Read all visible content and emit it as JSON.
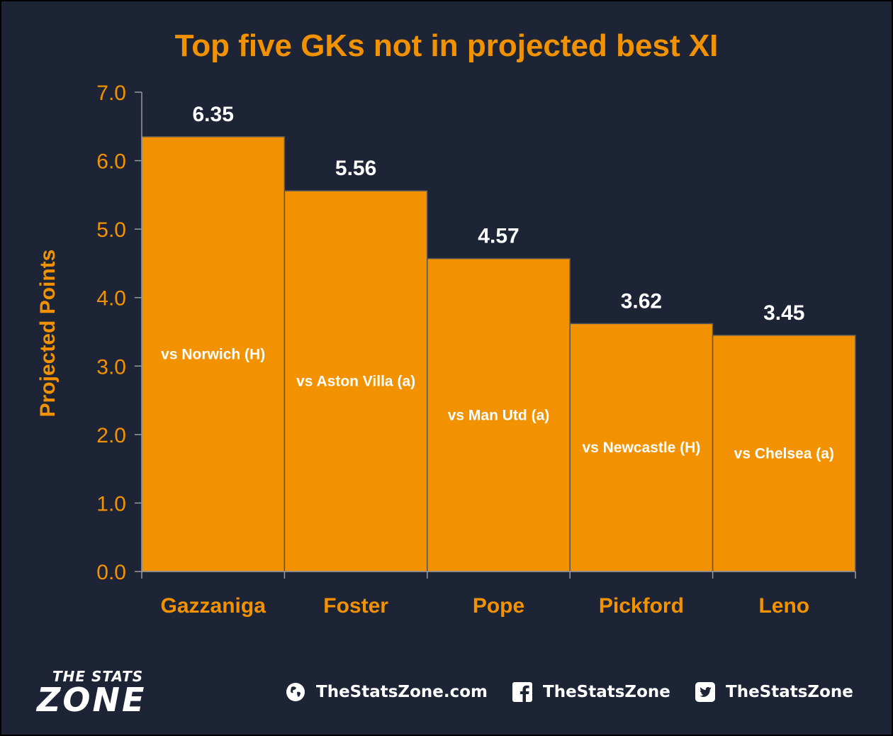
{
  "chart_data": {
    "type": "bar",
    "title": "Top five GKs not in projected best XI",
    "ylabel": "Projected Points",
    "xlabel": "",
    "ylim": [
      0,
      7
    ],
    "yticks": [
      "0.0",
      "1.0",
      "2.0",
      "3.0",
      "4.0",
      "5.0",
      "6.0",
      "7.0"
    ],
    "categories": [
      "Gazzaniga",
      "Foster",
      "Pope",
      "Pickford",
      "Leno"
    ],
    "values": [
      6.35,
      5.56,
      4.57,
      3.62,
      3.45
    ],
    "value_labels": [
      "6.35",
      "5.56",
      "4.57",
      "3.62",
      "3.45"
    ],
    "bar_labels": [
      "vs Norwich (H)",
      "vs Aston Villa (a)",
      "vs Man Utd (a)",
      "vs Newcastle (H)",
      "vs Chelsea (a)"
    ],
    "colors": {
      "bar": "#f39200",
      "background": "#1d2436",
      "title": "#f39200",
      "value_label": "#ffffff",
      "bar_label": "#ffffff"
    },
    "grid": false
  },
  "footer": {
    "logo": {
      "line1": "THE STATS",
      "line2": "ZONE"
    },
    "website": {
      "icon": "globe-icon",
      "text": "TheStatsZone.com"
    },
    "facebook": {
      "icon": "facebook-icon",
      "text": "TheStatsZone"
    },
    "twitter": {
      "icon": "twitter-icon",
      "text": "TheStatsZone"
    }
  }
}
